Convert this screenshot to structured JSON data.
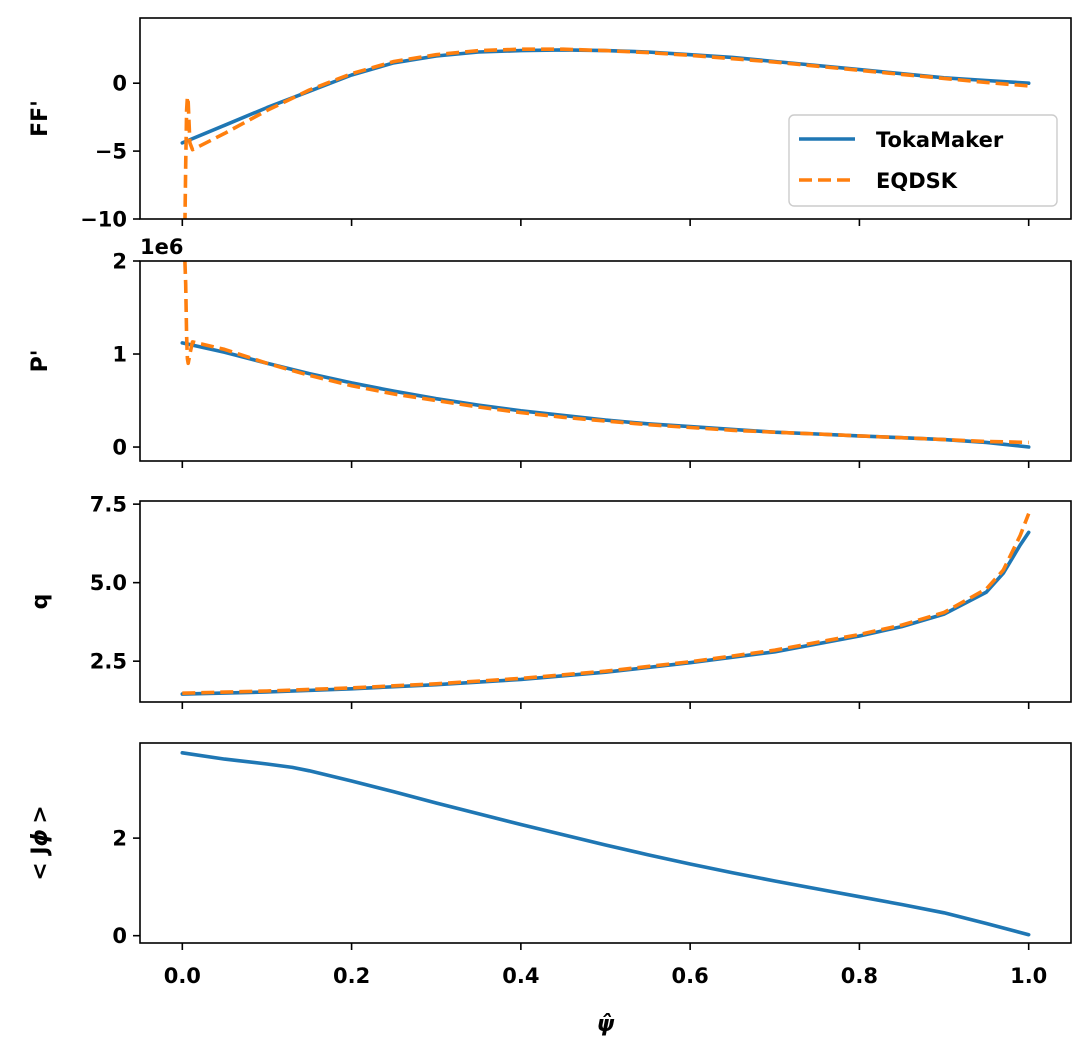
{
  "colors": {
    "tokamaker": "#1f77b4",
    "eqdsk": "#ff7f0e"
  },
  "legend": {
    "placement": "right",
    "entries": [
      "TokaMaker",
      "EQDSK"
    ]
  },
  "chart_data": [
    {
      "type": "line",
      "ylabel": "FF'",
      "xlim": [
        -0.05,
        1.05
      ],
      "ylim": [
        -10,
        4.8
      ],
      "yticks": [
        -10,
        -5,
        0
      ],
      "ytick_labels": [
        "−10",
        "−5",
        "0"
      ],
      "x_ticklabels_shown": false,
      "series": [
        {
          "name": "TokaMaker",
          "style": "solid",
          "x": [
            0.0,
            0.05,
            0.1,
            0.15,
            0.2,
            0.25,
            0.3,
            0.35,
            0.4,
            0.45,
            0.5,
            0.55,
            0.6,
            0.65,
            0.7,
            0.75,
            0.8,
            0.85,
            0.9,
            0.95,
            1.0
          ],
          "y": [
            -4.4,
            -3.1,
            -1.8,
            -0.6,
            0.6,
            1.5,
            2.0,
            2.3,
            2.4,
            2.45,
            2.4,
            2.3,
            2.1,
            1.9,
            1.6,
            1.3,
            1.0,
            0.7,
            0.4,
            0.2,
            0.0
          ]
        },
        {
          "name": "EQDSK",
          "style": "dashed",
          "x": [
            0.003,
            0.004,
            0.005,
            0.006,
            0.007,
            0.008,
            0.009,
            0.012,
            0.05,
            0.1,
            0.15,
            0.2,
            0.25,
            0.3,
            0.35,
            0.4,
            0.45,
            0.5,
            0.55,
            0.6,
            0.65,
            0.7,
            0.75,
            0.8,
            0.85,
            0.9,
            0.95,
            1.0
          ],
          "y": [
            -10.5,
            -6.0,
            -2.0,
            -1.0,
            -1.4,
            -3.0,
            -4.4,
            -4.9,
            -3.7,
            -2.0,
            -0.5,
            0.7,
            1.6,
            2.1,
            2.4,
            2.5,
            2.5,
            2.4,
            2.25,
            2.05,
            1.8,
            1.55,
            1.25,
            0.95,
            0.65,
            0.35,
            0.05,
            -0.2
          ]
        }
      ]
    },
    {
      "type": "line",
      "ylabel": "P'",
      "offset_text": "1e6",
      "xlim": [
        -0.05,
        1.05
      ],
      "ylim": [
        -0.15,
        2.0
      ],
      "yticks": [
        0,
        1,
        2
      ],
      "ytick_labels": [
        "0",
        "1",
        "2"
      ],
      "x_ticklabels_shown": false,
      "series": [
        {
          "name": "TokaMaker",
          "style": "solid",
          "x": [
            0.0,
            0.05,
            0.1,
            0.15,
            0.2,
            0.25,
            0.3,
            0.35,
            0.4,
            0.45,
            0.5,
            0.55,
            0.6,
            0.65,
            0.7,
            0.75,
            0.8,
            0.85,
            0.9,
            0.95,
            1.0
          ],
          "y": [
            1.12,
            1.02,
            0.9,
            0.79,
            0.69,
            0.6,
            0.52,
            0.45,
            0.39,
            0.34,
            0.29,
            0.25,
            0.22,
            0.19,
            0.16,
            0.14,
            0.12,
            0.1,
            0.08,
            0.05,
            0.0
          ]
        },
        {
          "name": "EQDSK",
          "style": "dashed",
          "x": [
            0.003,
            0.004,
            0.005,
            0.006,
            0.007,
            0.009,
            0.012,
            0.05,
            0.1,
            0.15,
            0.2,
            0.25,
            0.3,
            0.35,
            0.4,
            0.45,
            0.5,
            0.55,
            0.6,
            0.65,
            0.7,
            0.75,
            0.8,
            0.85,
            0.9,
            0.95,
            1.0
          ],
          "y": [
            2.0,
            1.75,
            1.2,
            0.95,
            0.9,
            1.0,
            1.13,
            1.05,
            0.9,
            0.77,
            0.66,
            0.57,
            0.5,
            0.43,
            0.37,
            0.32,
            0.28,
            0.24,
            0.21,
            0.18,
            0.16,
            0.14,
            0.12,
            0.1,
            0.08,
            0.06,
            0.05
          ]
        }
      ]
    },
    {
      "type": "line",
      "ylabel": "q",
      "xlim": [
        -0.05,
        1.05
      ],
      "ylim": [
        1.2,
        7.6
      ],
      "yticks": [
        2.5,
        5.0,
        7.5
      ],
      "ytick_labels": [
        "2.5",
        "5.0",
        "7.5"
      ],
      "x_ticklabels_shown": false,
      "series": [
        {
          "name": "TokaMaker",
          "style": "solid",
          "x": [
            0.0,
            0.1,
            0.2,
            0.3,
            0.4,
            0.5,
            0.6,
            0.7,
            0.8,
            0.85,
            0.9,
            0.95,
            0.97,
            0.99,
            1.0
          ],
          "y": [
            1.45,
            1.52,
            1.62,
            1.75,
            1.92,
            2.15,
            2.45,
            2.8,
            3.3,
            3.6,
            4.0,
            4.7,
            5.3,
            6.2,
            6.6
          ]
        },
        {
          "name": "EQDSK",
          "style": "dashed",
          "x": [
            0.0,
            0.1,
            0.2,
            0.3,
            0.4,
            0.5,
            0.6,
            0.7,
            0.8,
            0.85,
            0.9,
            0.95,
            0.97,
            0.99,
            1.0
          ],
          "y": [
            1.48,
            1.55,
            1.65,
            1.78,
            1.95,
            2.18,
            2.48,
            2.85,
            3.35,
            3.65,
            4.05,
            4.8,
            5.4,
            6.5,
            7.2
          ]
        }
      ]
    },
    {
      "type": "line",
      "ylabel": "< J_ϕ >",
      "xlabel": "ψ̂",
      "xlim": [
        -0.05,
        1.05
      ],
      "ylim": [
        -0.15,
        3.95
      ],
      "yticks": [
        0,
        2
      ],
      "ytick_labels": [
        "0",
        "2"
      ],
      "xticks": [
        0.0,
        0.2,
        0.4,
        0.6,
        0.8,
        1.0
      ],
      "xtick_labels": [
        "0.0",
        "0.2",
        "0.4",
        "0.6",
        "0.8",
        "1.0"
      ],
      "series": [
        {
          "name": "TokaMaker",
          "style": "solid",
          "x": [
            0.0,
            0.05,
            0.1,
            0.13,
            0.15,
            0.2,
            0.25,
            0.3,
            0.35,
            0.4,
            0.45,
            0.5,
            0.55,
            0.6,
            0.65,
            0.7,
            0.75,
            0.8,
            0.85,
            0.9,
            0.95,
            1.0
          ],
          "y": [
            3.75,
            3.62,
            3.52,
            3.45,
            3.38,
            3.17,
            2.95,
            2.72,
            2.5,
            2.28,
            2.07,
            1.86,
            1.66,
            1.47,
            1.29,
            1.12,
            0.96,
            0.8,
            0.64,
            0.47,
            0.25,
            0.02
          ]
        }
      ]
    }
  ]
}
